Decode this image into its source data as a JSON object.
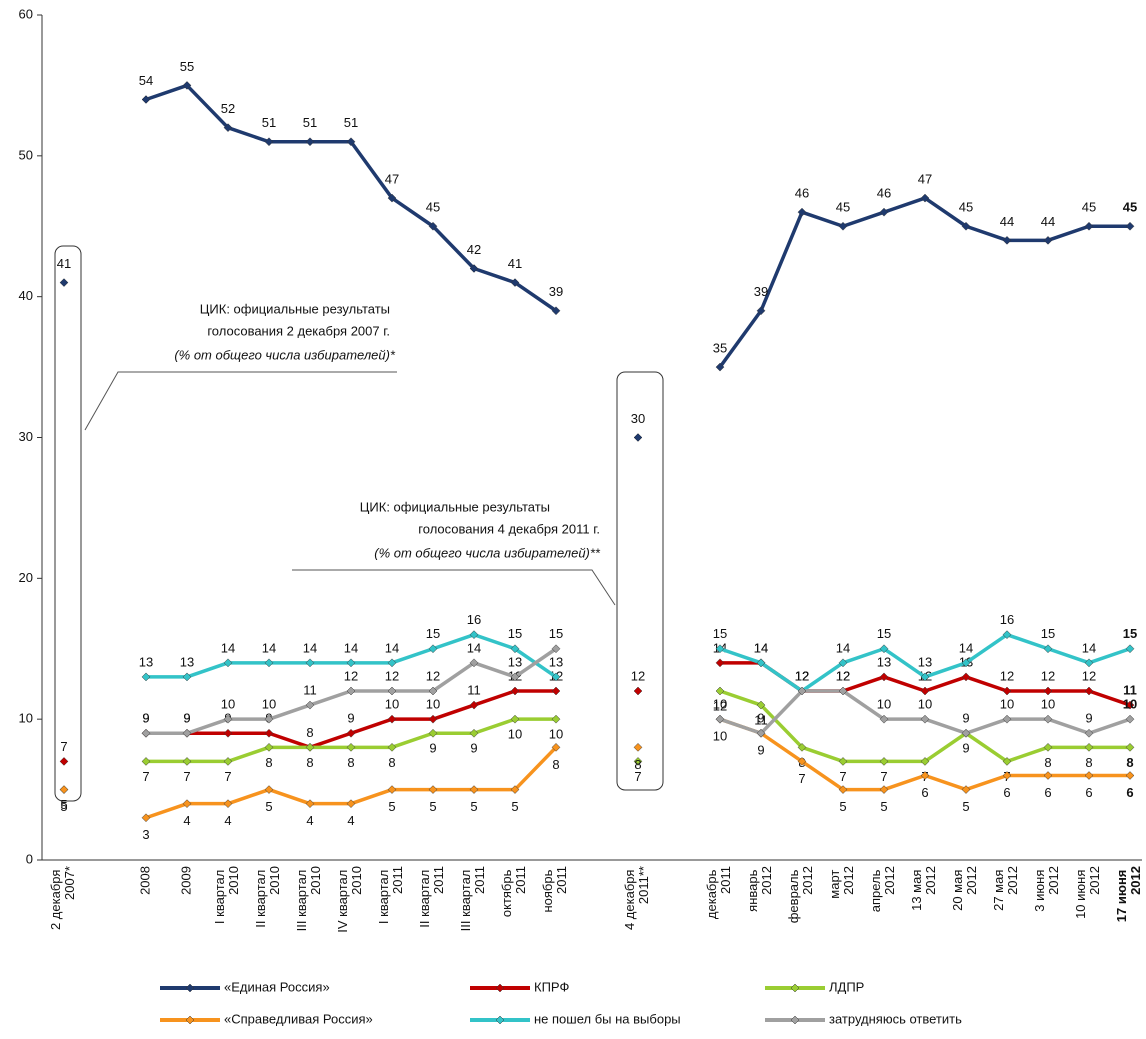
{
  "chart_data": {
    "type": "line",
    "categories": [
      "2 декабря 2007*",
      null,
      "2008",
      "2009",
      "I квартал 2010",
      "II квартал 2010",
      "III квартал 2010",
      "IV квартал 2010",
      "I квартал 2011",
      "II квартал 2011",
      "III квартал 2011",
      "октябрь 2011",
      "ноябрь 2011",
      null,
      "4 декабря 2011**",
      null,
      "декабрь 2011",
      "январь 2012",
      "февраль 2012",
      "март 2012",
      "апрель 2012",
      "13 мая 2012",
      "20 мая 2012",
      "27 мая 2012",
      "3 июня 2012",
      "10 июня 2012",
      "17 июня 2012"
    ],
    "series": [
      {
        "name": "«Единая Россия»",
        "color": "#1f3a6e",
        "values": [
          41,
          null,
          54,
          55,
          52,
          51,
          51,
          51,
          47,
          45,
          42,
          41,
          39,
          null,
          30,
          null,
          35,
          39,
          46,
          45,
          46,
          47,
          45,
          44,
          44,
          45,
          45
        ]
      },
      {
        "name": "КПРФ",
        "color": "#c00000",
        "values": [
          7,
          null,
          9,
          9,
          9,
          9,
          8,
          9,
          10,
          10,
          11,
          12,
          12,
          null,
          12,
          null,
          14,
          14,
          12,
          12,
          13,
          12,
          13,
          12,
          12,
          12,
          11
        ]
      },
      {
        "name": "ЛДПР",
        "color": "#9acd32",
        "values": [
          5,
          null,
          7,
          7,
          7,
          8,
          8,
          8,
          8,
          9,
          9,
          10,
          10,
          null,
          7,
          null,
          12,
          11,
          8,
          7,
          7,
          7,
          9,
          7,
          8,
          8,
          8
        ]
      },
      {
        "name": "«Справедливая Россия»",
        "color": "#f7931e",
        "values": [
          5,
          null,
          3,
          4,
          4,
          5,
          4,
          4,
          5,
          5,
          5,
          5,
          8,
          null,
          8,
          null,
          10,
          9,
          7,
          5,
          5,
          6,
          5,
          6,
          6,
          6,
          6
        ]
      },
      {
        "name": "не пошел бы на выборы",
        "color": "#33c3c8",
        "values": [
          null,
          null,
          13,
          13,
          14,
          14,
          14,
          14,
          14,
          15,
          16,
          15,
          13,
          null,
          null,
          null,
          15,
          14,
          12,
          14,
          15,
          13,
          14,
          16,
          15,
          14,
          15
        ]
      },
      {
        "name": "затрудняюсь ответить",
        "color": "#a0a0a0",
        "values": [
          null,
          null,
          9,
          9,
          10,
          10,
          11,
          12,
          12,
          12,
          14,
          13,
          15,
          null,
          null,
          null,
          10,
          9,
          12,
          12,
          10,
          10,
          9,
          10,
          10,
          9,
          10
        ]
      }
    ],
    "ylim": [
      0,
      60
    ],
    "yticks": [
      0,
      10,
      20,
      30,
      40,
      50,
      60
    ],
    "annotations": [
      {
        "lines": [
          "ЦИК: официальные результаты",
          "голосования 2 декабря 2007 г.",
          "(% от общего числа избирателей)*"
        ]
      },
      {
        "lines": [
          "ЦИК: официальные результаты",
          "голосования 4 декабря 2011 г.",
          "(% от общего числа избирателей)**"
        ]
      }
    ]
  }
}
